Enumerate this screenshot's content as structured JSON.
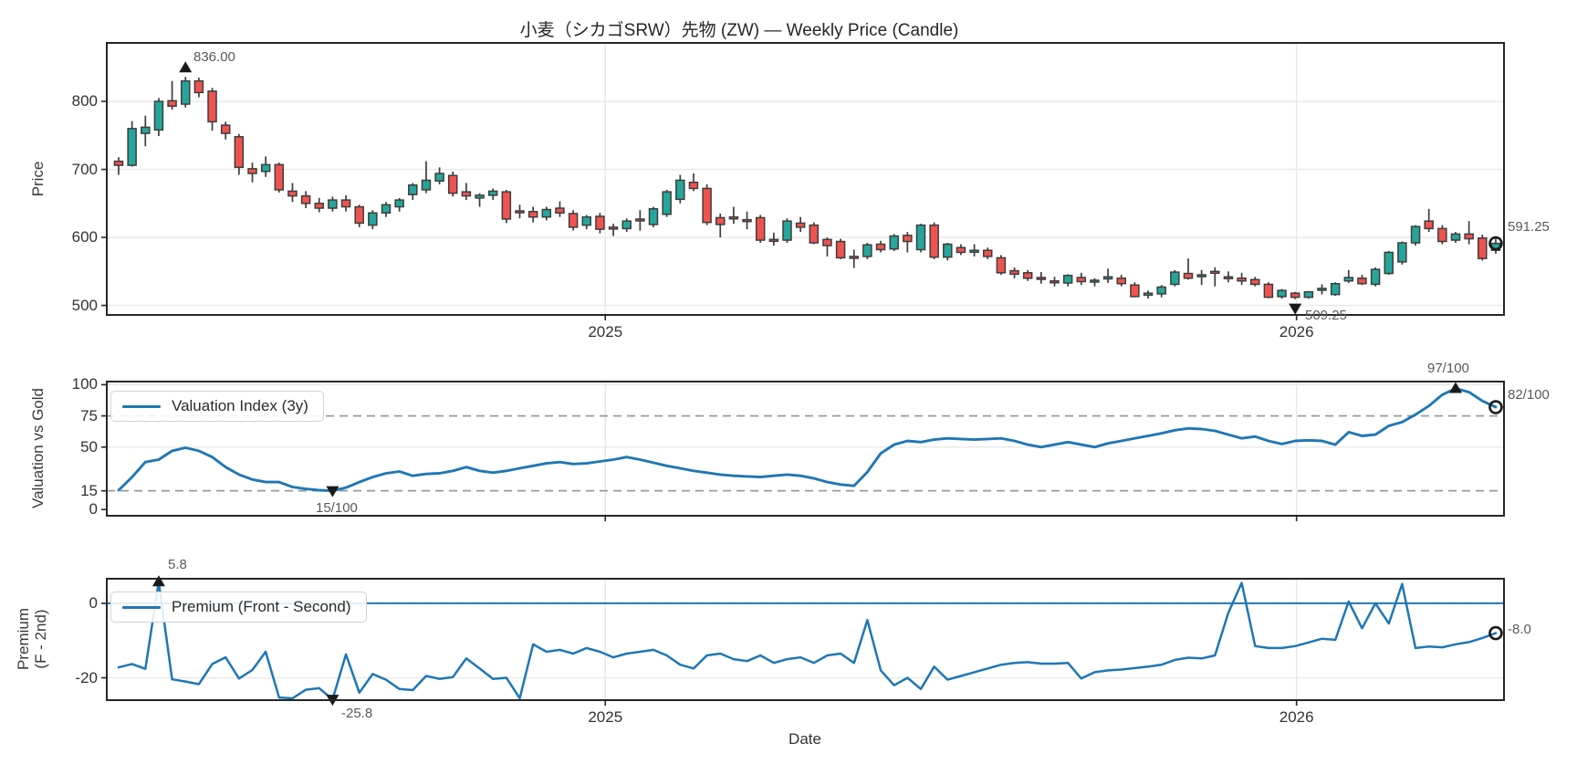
{
  "title": "小麦（シカゴSRW）先物 (ZW) — Weekly Price (Candle)",
  "colors": {
    "candle_up": "#26a69a",
    "candle_down": "#ef5350",
    "candle_outline": "#3d3d3d",
    "line_blue": "#1f77b4",
    "dashed_gray": "#9a9a9a",
    "grid": "#e8e8e8",
    "spine": "#262626",
    "marker": "#1a1a1a",
    "annotation_text": "#595959"
  },
  "chart_data": [
    {
      "type": "candlestick",
      "panel": "price",
      "ylabel": "Price",
      "yticks": [
        500,
        600,
        700,
        800
      ],
      "ylim": [
        486,
        886
      ],
      "xticks": [
        {
          "label": "2025",
          "index": 36.4
        },
        {
          "label": "2026",
          "index": 88.1
        }
      ],
      "grid": true,
      "annotations": {
        "max": "836.00",
        "min": "509.25",
        "last": "591.25"
      },
      "marker_indices": {
        "max": 5,
        "min": 88,
        "last": 103
      },
      "candles_ohlc": [
        [
          712,
          718,
          692,
          706
        ],
        [
          706,
          771,
          704,
          760
        ],
        [
          753,
          779,
          734,
          762
        ],
        [
          758,
          805,
          749,
          800
        ],
        [
          801,
          830,
          788,
          793
        ],
        [
          796,
          836,
          791,
          830
        ],
        [
          830,
          835,
          806,
          813
        ],
        [
          815,
          820,
          757,
          770
        ],
        [
          765,
          770,
          744,
          753
        ],
        [
          748,
          752,
          692,
          703
        ],
        [
          701,
          710,
          681,
          694
        ],
        [
          697,
          719,
          689,
          707
        ],
        [
          707,
          710,
          666,
          670
        ],
        [
          668,
          680,
          652,
          661
        ],
        [
          661,
          668,
          643,
          650
        ],
        [
          650,
          658,
          637,
          643
        ],
        [
          643,
          660,
          638,
          655
        ],
        [
          655,
          662,
          638,
          645
        ],
        [
          645,
          648,
          615,
          621
        ],
        [
          618,
          640,
          612,
          636
        ],
        [
          636,
          652,
          630,
          648
        ],
        [
          645,
          658,
          638,
          655
        ],
        [
          663,
          680,
          655,
          677
        ],
        [
          670,
          712,
          665,
          684
        ],
        [
          683,
          703,
          678,
          694
        ],
        [
          691,
          697,
          660,
          665
        ],
        [
          667,
          680,
          655,
          661
        ],
        [
          658,
          665,
          645,
          662
        ],
        [
          662,
          672,
          655,
          668
        ],
        [
          667,
          670,
          621,
          627
        ],
        [
          639,
          648,
          628,
          638
        ],
        [
          638,
          645,
          622,
          630
        ],
        [
          630,
          645,
          625,
          641
        ],
        [
          643,
          653,
          630,
          636
        ],
        [
          635,
          640,
          610,
          615
        ],
        [
          618,
          633,
          612,
          630
        ],
        [
          631,
          636,
          606,
          612
        ],
        [
          615,
          620,
          602,
          614
        ],
        [
          613,
          628,
          608,
          624
        ],
        [
          627,
          640,
          610,
          626
        ],
        [
          619,
          645,
          615,
          642
        ],
        [
          634,
          670,
          630,
          667
        ],
        [
          656,
          692,
          650,
          684
        ],
        [
          681,
          694,
          668,
          672
        ],
        [
          672,
          678,
          618,
          622
        ],
        [
          629,
          635,
          600,
          619
        ],
        [
          630,
          645,
          620,
          629
        ],
        [
          626,
          638,
          612,
          625
        ],
        [
          629,
          633,
          592,
          596
        ],
        [
          597,
          607,
          588,
          596
        ],
        [
          596,
          628,
          592,
          624
        ],
        [
          621,
          630,
          608,
          615
        ],
        [
          618,
          622,
          590,
          592
        ],
        [
          597,
          600,
          572,
          588
        ],
        [
          594,
          598,
          568,
          570
        ],
        [
          572,
          582,
          555,
          571
        ],
        [
          572,
          592,
          568,
          589
        ],
        [
          590,
          595,
          578,
          582
        ],
        [
          583,
          605,
          580,
          602
        ],
        [
          603,
          608,
          578,
          594
        ],
        [
          582,
          620,
          578,
          618
        ],
        [
          618,
          622,
          568,
          571
        ],
        [
          571,
          592,
          566,
          590
        ],
        [
          585,
          590,
          574,
          578
        ],
        [
          581,
          590,
          572,
          581
        ],
        [
          581,
          585,
          568,
          572
        ],
        [
          570,
          574,
          545,
          548
        ],
        [
          551,
          556,
          540,
          546
        ],
        [
          548,
          552,
          536,
          540
        ],
        [
          541,
          549,
          532,
          539
        ],
        [
          536,
          542,
          528,
          535
        ],
        [
          533,
          546,
          528,
          544
        ],
        [
          541,
          548,
          530,
          535
        ],
        [
          535,
          540,
          528,
          537
        ],
        [
          539,
          554,
          533,
          542
        ],
        [
          540,
          545,
          528,
          532
        ],
        [
          530,
          534,
          512,
          513
        ],
        [
          515,
          522,
          510,
          518
        ],
        [
          517,
          530,
          512,
          527
        ],
        [
          531,
          552,
          528,
          549
        ],
        [
          547,
          569,
          538,
          540
        ],
        [
          545,
          552,
          530,
          545
        ],
        [
          550,
          556,
          528,
          548
        ],
        [
          542,
          550,
          534,
          540
        ],
        [
          540,
          548,
          530,
          536
        ],
        [
          538,
          542,
          528,
          531
        ],
        [
          531,
          534,
          510.5,
          512
        ],
        [
          513,
          524,
          510,
          522
        ],
        [
          518,
          520,
          509.25,
          512
        ],
        [
          512,
          521,
          510,
          520
        ],
        [
          524,
          531,
          516,
          525
        ],
        [
          516,
          534,
          514,
          532
        ],
        [
          536,
          552,
          533,
          541
        ],
        [
          540,
          545,
          530,
          532
        ],
        [
          531,
          556,
          528,
          553
        ],
        [
          547,
          580,
          545,
          578
        ],
        [
          564,
          594,
          560,
          592
        ],
        [
          592,
          618,
          588,
          616
        ],
        [
          624,
          642,
          608,
          613
        ],
        [
          613,
          618,
          590,
          594
        ],
        [
          596,
          608,
          592,
          605
        ],
        [
          605,
          624,
          590,
          598
        ],
        [
          599,
          604,
          566,
          569
        ],
        [
          581,
          600,
          576,
          591.25
        ]
      ]
    },
    {
      "type": "line",
      "panel": "valuation",
      "ylabel": "Valuation vs Gold",
      "legend": "Valuation Index (3y)",
      "yticks": [
        0,
        15,
        50,
        75,
        100
      ],
      "ylim": [
        -5,
        102.5
      ],
      "solid_gridlines": [
        50,
        100
      ],
      "dashed_lines": [
        15,
        75
      ],
      "annotations": {
        "max": "97/100",
        "min": "15/100",
        "last": "82/100"
      },
      "marker_indices": {
        "max": 100,
        "min": 16,
        "last": 103
      },
      "values": [
        15.5,
        26,
        38,
        40,
        47,
        49.5,
        47,
        42,
        34,
        28,
        24,
        22,
        22,
        18,
        16.5,
        15.5,
        15,
        17.5,
        22,
        26,
        29,
        30.5,
        27,
        28.5,
        29,
        31,
        34,
        31,
        29.5,
        31,
        33,
        35,
        37,
        38,
        36.5,
        37,
        38.5,
        40,
        42,
        40,
        37.5,
        35,
        33,
        31,
        29.5,
        28,
        27,
        26.5,
        26,
        27,
        28,
        27,
        25,
        22,
        20,
        19,
        30,
        45,
        52,
        55,
        54,
        56,
        57,
        56.5,
        56,
        56.5,
        57,
        55,
        52,
        50,
        52,
        54,
        52,
        50,
        53,
        55,
        57,
        59,
        61,
        63.5,
        65,
        64.5,
        63,
        60,
        57,
        58.5,
        55,
        52.5,
        55,
        55.5,
        55,
        52,
        62,
        59,
        60,
        67,
        70,
        76,
        83,
        92,
        97,
        94,
        87,
        82
      ]
    },
    {
      "type": "line",
      "panel": "premium",
      "ylabel": "Premium\n(F - 2nd)",
      "xlabel": "Date",
      "legend": "Premium (Front - Second)",
      "yticks": [
        -20,
        0
      ],
      "ylim": [
        -26,
        6.6
      ],
      "solid_gridlines": [
        -20
      ],
      "zero_line": 0,
      "xticks": [
        {
          "label": "2025",
          "index": 36.4
        },
        {
          "label": "2026",
          "index": 88.1
        }
      ],
      "annotations": {
        "max": "5.8",
        "min": "-25.8",
        "last": "-8.0"
      },
      "marker_indices": {
        "max": 3,
        "min": 16,
        "last": 103
      },
      "values": [
        -17.2,
        -16.3,
        -17.6,
        5.8,
        -20.4,
        -21,
        -21.7,
        -16.3,
        -14.5,
        -20.2,
        -17.9,
        -13,
        -25.3,
        -25.5,
        -23.2,
        -22.8,
        -25.8,
        -13.7,
        -24,
        -19,
        -20.5,
        -23,
        -23.3,
        -19.5,
        -20.3,
        -19.8,
        -14.8,
        -17.5,
        -20.3,
        -20,
        -25.5,
        -11,
        -13,
        -12.5,
        -13.5,
        -12,
        -13,
        -14.5,
        -13.5,
        -13,
        -12.5,
        -14,
        -16.5,
        -17.5,
        -14,
        -13.5,
        -15,
        -15.5,
        -14,
        -16,
        -15,
        -14.5,
        -16,
        -14,
        -13.5,
        -16,
        -4.5,
        -18,
        -22,
        -20,
        -23,
        -17,
        -20.5,
        -19.5,
        -18.5,
        -17.5,
        -16.5,
        -16,
        -15.8,
        -16.2,
        -16.2,
        -16,
        -20.2,
        -18.5,
        -18,
        -17.8,
        -17.4,
        -17,
        -16.5,
        -15.2,
        -14.6,
        -14.8,
        -14,
        -2.5,
        5.5,
        -11.5,
        -12,
        -12,
        -11.5,
        -10.5,
        -9.5,
        -9.8,
        0.5,
        -6.7,
        0,
        -5.4,
        5.2,
        -12,
        -11.6,
        -11.8,
        -11,
        -10.4,
        -9.3,
        -8
      ]
    }
  ]
}
